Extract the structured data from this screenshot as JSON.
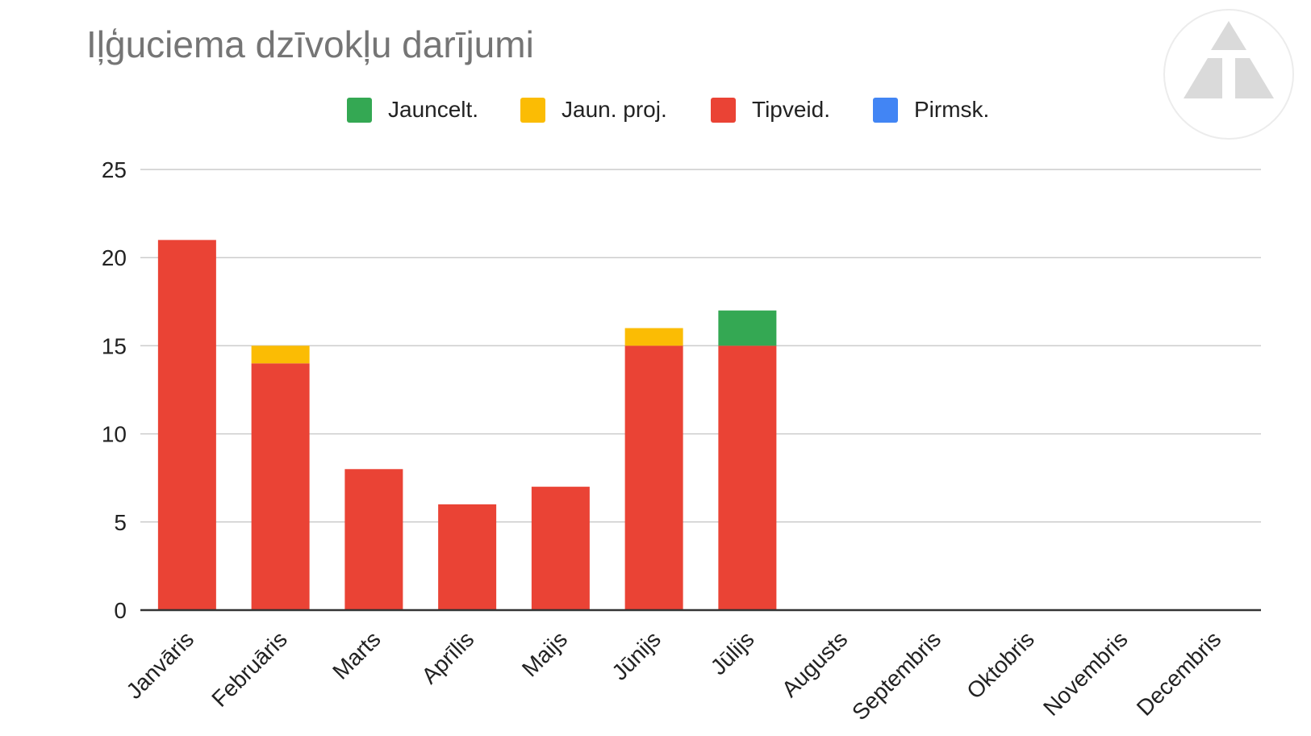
{
  "chart_data": {
    "type": "bar",
    "stacked": true,
    "title": "Iļģuciema dzīvokļu darījumi",
    "categories": [
      "Janvāris",
      "Februāris",
      "Marts",
      "Aprīlis",
      "Maijs",
      "Jūnijs",
      "Jūlijs",
      "Augusts",
      "Septembris",
      "Oktobris",
      "Novembris",
      "Decembris"
    ],
    "series": [
      {
        "name": "Tipveid.",
        "color": "#EA4335",
        "values": [
          21,
          14,
          8,
          6,
          7,
          15,
          15,
          0,
          0,
          0,
          0,
          0
        ]
      },
      {
        "name": "Jaun. proj.",
        "color": "#FBBC04",
        "values": [
          0,
          1,
          0,
          0,
          0,
          1,
          0,
          0,
          0,
          0,
          0,
          0
        ]
      },
      {
        "name": "Jauncelt.",
        "color": "#34A853",
        "values": [
          0,
          0,
          0,
          0,
          0,
          0,
          2,
          0,
          0,
          0,
          0,
          0
        ]
      },
      {
        "name": "Pirmsk.",
        "color": "#4285F4",
        "values": [
          0,
          0,
          0,
          0,
          0,
          0,
          0,
          0,
          0,
          0,
          0,
          0
        ]
      }
    ],
    "legend_order": [
      "Jauncelt.",
      "Jaun. proj.",
      "Tipveid.",
      "Pirmsk."
    ],
    "legend_position": "top",
    "ylim": [
      0,
      25
    ],
    "yticks": [
      0,
      5,
      10,
      15,
      20,
      25
    ],
    "grid": true,
    "xlabel": "",
    "ylabel": ""
  },
  "logo": {
    "icon": "triangle-logo-icon"
  }
}
